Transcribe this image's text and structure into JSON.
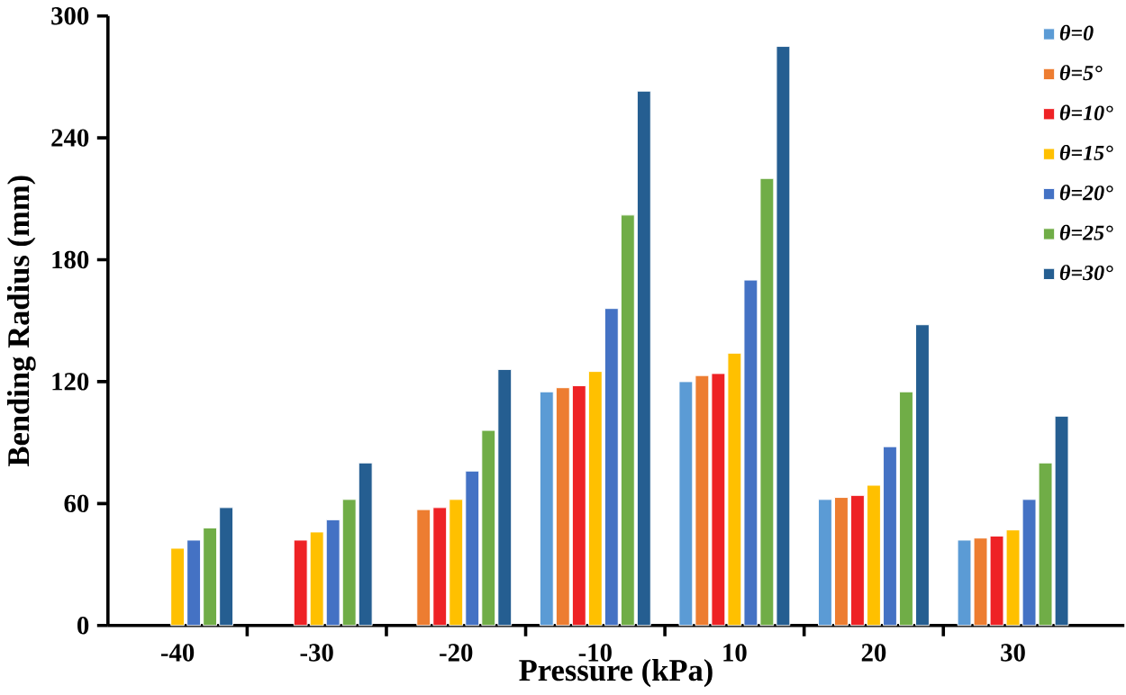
{
  "chart_data": {
    "type": "bar",
    "xlabel": "Pressure (kPa)",
    "ylabel": "Bending Radius (mm)",
    "categories": [
      "-40",
      "-30",
      "-20",
      "-10",
      "10",
      "20",
      "30"
    ],
    "ylim": [
      0,
      300
    ],
    "yticks": [
      0,
      60,
      120,
      180,
      240,
      300
    ],
    "legend": "top right",
    "grid": false,
    "series": [
      {
        "name": "θ=0",
        "color": "#5b9bd5",
        "values": [
          null,
          null,
          null,
          115,
          120,
          62,
          42
        ]
      },
      {
        "name": "θ=5°",
        "color": "#ed7d31",
        "values": [
          null,
          null,
          57,
          117,
          123,
          63,
          43
        ]
      },
      {
        "name": "θ=10°",
        "color": "#ee2225",
        "values": [
          null,
          42,
          58,
          118,
          124,
          64,
          44
        ]
      },
      {
        "name": "θ=15°",
        "color": "#ffc000",
        "values": [
          38,
          46,
          62,
          125,
          134,
          69,
          47
        ]
      },
      {
        "name": "θ=20°",
        "color": "#4472c4",
        "values": [
          42,
          52,
          76,
          156,
          170,
          88,
          62
        ]
      },
      {
        "name": "θ=25°",
        "color": "#70ad47",
        "values": [
          48,
          62,
          96,
          202,
          220,
          115,
          80
        ]
      },
      {
        "name": "θ=30°",
        "color": "#255e91",
        "values": [
          58,
          80,
          126,
          263,
          285,
          148,
          103
        ]
      }
    ]
  }
}
